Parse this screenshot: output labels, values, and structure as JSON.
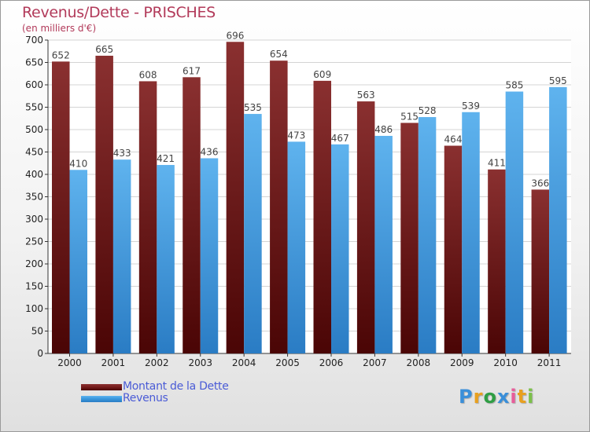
{
  "chart_data": {
    "type": "bar",
    "title": "Revenus/Dette - PRISCHES",
    "subtitle": "(en milliers d'€)",
    "categories": [
      "2000",
      "2001",
      "2002",
      "2003",
      "2004",
      "2005",
      "2006",
      "2007",
      "2008",
      "2009",
      "2010",
      "2011"
    ],
    "series": [
      {
        "name": "Montant de la Dette",
        "color": "#7a1e1e",
        "values": [
          652,
          665,
          608,
          617,
          696,
          654,
          609,
          563,
          515,
          464,
          411,
          366
        ]
      },
      {
        "name": "Revenus",
        "color": "#3d9be0",
        "values": [
          410,
          433,
          421,
          436,
          535,
          473,
          467,
          486,
          528,
          539,
          585,
          595
        ]
      }
    ],
    "ylim": [
      0,
      700
    ],
    "yticks": [
      0,
      50,
      100,
      150,
      200,
      250,
      300,
      350,
      400,
      450,
      500,
      550,
      600,
      650,
      700
    ],
    "grid": true,
    "legend_position": "bottom-left"
  },
  "logo": {
    "text": "Proxiti",
    "letters": [
      "P",
      "r",
      "o",
      "x",
      "i",
      "t",
      "i"
    ],
    "colors": [
      "#3a8fd9",
      "#e8a020",
      "#2f9e44",
      "#3a8fd9",
      "#e85d9a",
      "#e8a020",
      "#7cc04a"
    ]
  }
}
